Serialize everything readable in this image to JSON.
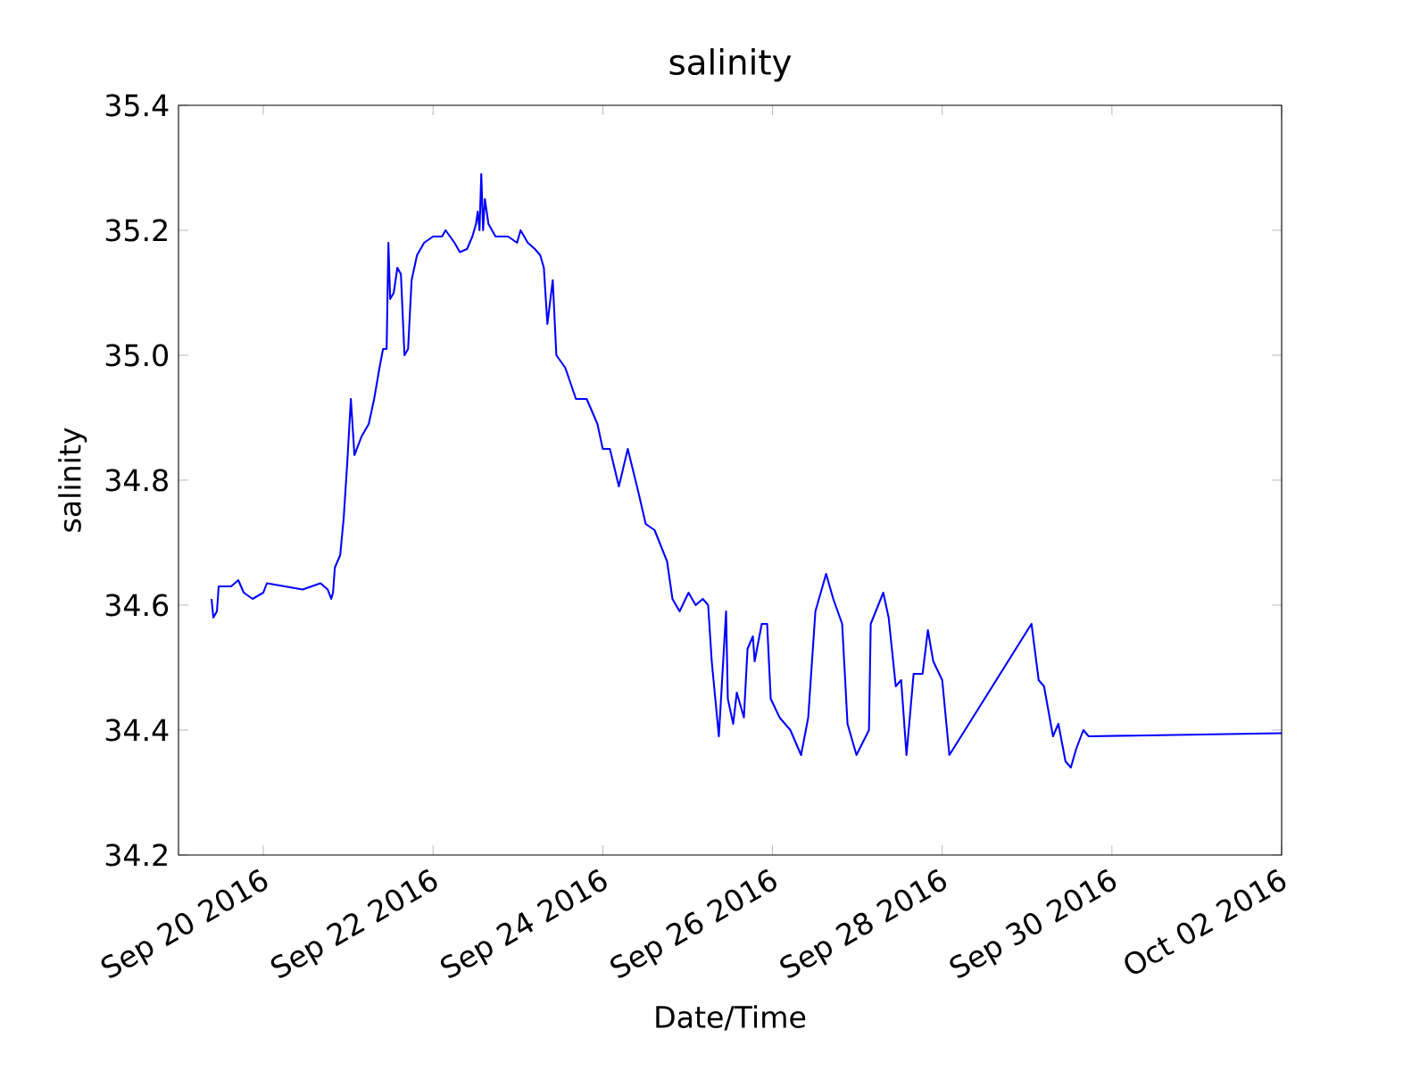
{
  "chart_data": {
    "type": "line",
    "title": "salinity",
    "xlabel": "Date/Time",
    "ylabel": "salinity",
    "xlim": [
      "2016-09-19",
      "2016-10-02"
    ],
    "xticks": [
      {
        "value": "2016-09-20",
        "label": "Sep 20 2016"
      },
      {
        "value": "2016-09-22",
        "label": "Sep 22 2016"
      },
      {
        "value": "2016-09-24",
        "label": "Sep 24 2016"
      },
      {
        "value": "2016-09-26",
        "label": "Sep 26 2016"
      },
      {
        "value": "2016-09-28",
        "label": "Sep 28 2016"
      },
      {
        "value": "2016-09-30",
        "label": "Sep 30 2016"
      },
      {
        "value": "2016-10-02",
        "label": "Oct 02 2016"
      }
    ],
    "ylim": [
      34.2,
      35.4
    ],
    "yticks": [
      {
        "value": 34.2,
        "label": "34.2"
      },
      {
        "value": 34.4,
        "label": "34.4"
      },
      {
        "value": 34.6,
        "label": "34.6"
      },
      {
        "value": 34.8,
        "label": "34.8"
      },
      {
        "value": 35.0,
        "label": "35.0"
      },
      {
        "value": 35.2,
        "label": "35.2"
      },
      {
        "value": 35.4,
        "label": "35.4"
      }
    ],
    "grid": false,
    "marker": "none",
    "line_style": "solid",
    "series": [
      {
        "color": "#0000ff",
        "x": [
          "2016-09-19T09:21",
          "2016-09-19T09:51",
          "2016-09-19T10:52",
          "2016-09-19T11:22",
          "2016-09-19T14:54",
          "2016-09-19T16:55",
          "2016-09-19T18:27",
          "2016-09-19T20:58",
          "2016-09-20T00:00",
          "2016-09-20T01:00",
          "2016-09-20T06:04",
          "2016-09-20T11:07",
          "2016-09-20T13:38",
          "2016-09-20T16:10",
          "2016-09-20T18:11",
          "2016-09-20T19:12",
          "2016-09-20T19:42",
          "2016-09-20T20:13",
          "2016-09-20T21:44",
          "2016-09-20T22:44",
          "2016-09-20T23:45",
          "2016-09-21T00:45",
          "2016-09-21T01:46",
          "2016-09-21T03:47",
          "2016-09-21T05:49",
          "2016-09-21T07:20",
          "2016-09-21T08:51",
          "2016-09-21T09:51",
          "2016-09-21T10:52",
          "2016-09-21T11:22",
          "2016-09-21T11:52",
          "2016-09-21T12:53",
          "2016-09-21T13:54",
          "2016-09-21T14:54",
          "2016-09-21T15:55",
          "2016-09-21T16:56",
          "2016-09-21T17:56",
          "2016-09-21T19:27",
          "2016-09-21T21:28",
          "2016-09-22T00:00",
          "2016-09-22T02:32",
          "2016-09-22T03:32",
          "2016-09-22T06:04",
          "2016-09-22T07:35",
          "2016-09-22T09:36",
          "2016-09-22T11:07",
          "2016-09-22T12:08",
          "2016-09-22T12:38",
          "2016-09-22T13:08",
          "2016-09-22T13:38",
          "2016-09-22T14:09",
          "2016-09-22T14:39",
          "2016-09-22T15:40",
          "2016-09-22T17:41",
          "2016-09-22T21:13",
          "2016-09-22T23:45",
          "2016-09-23T00:45",
          "2016-09-23T02:47",
          "2016-09-23T04:48",
          "2016-09-23T06:19",
          "2016-09-23T07:20",
          "2016-09-23T08:20",
          "2016-09-23T09:51",
          "2016-09-23T10:52",
          "2016-09-23T13:23",
          "2016-09-23T16:25",
          "2016-09-23T19:27",
          "2016-09-23T22:29",
          "2016-09-24T00:00",
          "2016-09-24T02:01",
          "2016-09-24T04:33",
          "2016-09-24T07:04",
          "2016-09-24T10:06",
          "2016-09-24T12:08",
          "2016-09-24T14:39",
          "2016-09-24T18:11",
          "2016-09-24T19:42",
          "2016-09-24T21:44",
          "2016-09-25T00:15",
          "2016-09-25T02:16",
          "2016-09-25T04:17",
          "2016-09-25T05:48",
          "2016-09-25T06:49",
          "2016-09-25T08:50",
          "2016-09-25T10:52",
          "2016-09-25T11:22",
          "2016-09-25T12:53",
          "2016-09-25T13:54",
          "2016-09-25T15:55",
          "2016-09-25T16:56",
          "2016-09-25T18:27",
          "2016-09-25T18:57",
          "2016-09-25T20:58",
          "2016-09-25T22:29",
          "2016-09-25T23:30",
          "2016-09-26T02:01",
          "2016-09-26T05:03",
          "2016-09-26T08:05",
          "2016-09-26T10:06",
          "2016-09-26T12:08",
          "2016-09-26T15:10",
          "2016-09-26T17:11",
          "2016-09-26T19:42",
          "2016-09-26T21:13",
          "2016-09-26T23:45",
          "2016-09-27T03:17",
          "2016-09-27T03:47",
          "2016-09-27T07:20",
          "2016-09-27T08:51",
          "2016-09-27T10:52",
          "2016-09-27T12:23",
          "2016-09-27T13:54",
          "2016-09-27T15:55",
          "2016-09-27T18:27",
          "2016-09-27T19:57",
          "2016-09-27T21:28",
          "2016-09-28T00:00",
          "2016-09-28T02:01",
          "2016-09-29T01:15",
          "2016-09-29T03:17",
          "2016-09-29T04:48",
          "2016-09-29T07:20",
          "2016-09-29T08:51",
          "2016-09-29T10:52",
          "2016-09-29T12:23",
          "2016-09-29T13:54",
          "2016-09-29T15:55",
          "2016-09-29T17:26",
          "2016-10-02T00:00"
        ],
        "values": [
          34.61,
          34.58,
          34.59,
          34.63,
          34.63,
          34.64,
          34.62,
          34.61,
          34.62,
          34.635,
          34.63,
          34.625,
          34.63,
          34.635,
          34.625,
          34.61,
          34.62,
          34.66,
          34.68,
          34.74,
          34.83,
          34.93,
          34.84,
          34.87,
          34.89,
          34.93,
          34.98,
          35.01,
          35.01,
          35.18,
          35.09,
          35.1,
          35.14,
          35.13,
          35.0,
          35.01,
          35.12,
          35.16,
          35.18,
          35.19,
          35.19,
          35.2,
          35.18,
          35.165,
          35.17,
          35.19,
          35.21,
          35.23,
          35.2,
          35.29,
          35.2,
          35.25,
          35.21,
          35.19,
          35.19,
          35.18,
          35.2,
          35.18,
          35.17,
          35.16,
          35.14,
          35.05,
          35.12,
          35.0,
          34.98,
          34.93,
          34.93,
          34.89,
          34.85,
          34.85,
          34.79,
          34.85,
          34.78,
          34.73,
          34.72,
          34.67,
          34.61,
          34.59,
          34.62,
          34.6,
          34.61,
          34.6,
          34.51,
          34.39,
          34.59,
          34.45,
          34.41,
          34.46,
          34.42,
          34.53,
          34.55,
          34.51,
          34.57,
          34.57,
          34.45,
          34.42,
          34.4,
          34.36,
          34.42,
          34.59,
          34.65,
          34.61,
          34.57,
          34.41,
          34.36,
          34.4,
          34.57,
          34.62,
          34.58,
          34.47,
          34.48,
          34.36,
          34.49,
          34.49,
          34.56,
          34.51,
          34.48,
          34.36,
          34.57,
          34.48,
          34.47,
          34.39,
          34.41,
          34.35,
          34.34,
          34.37,
          34.4,
          34.39,
          34.395
        ]
      }
    ]
  }
}
